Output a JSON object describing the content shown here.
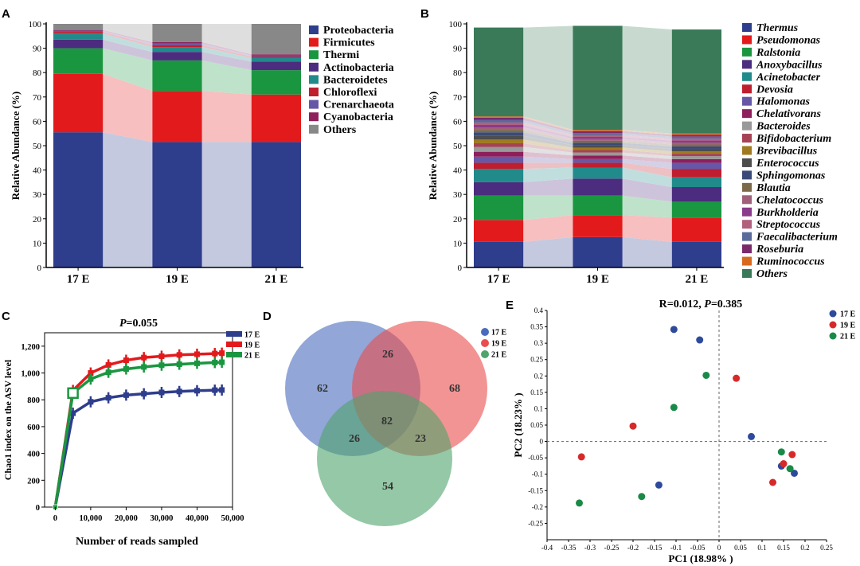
{
  "panels": {
    "A": "A",
    "B": "B",
    "C": "C",
    "D": "D",
    "E": "E"
  },
  "chart_data": [
    {
      "id": "A",
      "type": "bar",
      "stacked": true,
      "ylabel": "Relative Abundance (%)",
      "ylim": [
        0,
        100
      ],
      "yticks": [
        0,
        10,
        20,
        30,
        40,
        50,
        60,
        70,
        80,
        90,
        100
      ],
      "categories": [
        "17 E",
        "19 E",
        "21 E"
      ],
      "series": [
        {
          "name": "Proteobacteria",
          "color": "#2e3d8c",
          "values": [
            55.5,
            51.5,
            51.5
          ]
        },
        {
          "name": "Firmicutes",
          "color": "#e31a1c",
          "values": [
            24.0,
            21.0,
            19.5
          ]
        },
        {
          "name": "Thermi",
          "color": "#1a9640",
          "values": [
            10.5,
            12.5,
            10.0
          ]
        },
        {
          "name": "Actinobacteria",
          "color": "#4b2c7e",
          "values": [
            3.5,
            3.5,
            3.5
          ]
        },
        {
          "name": "Bacteroidetes",
          "color": "#218a8a",
          "values": [
            2.5,
            2.0,
            1.5
          ]
        },
        {
          "name": "Chloroflexi",
          "color": "#bf1e2e",
          "values": [
            0.7,
            0.8,
            0.6
          ]
        },
        {
          "name": "Crenarchaeota",
          "color": "#6658a6",
          "values": [
            0.5,
            0.6,
            0.5
          ]
        },
        {
          "name": "Cyanobacteria",
          "color": "#8e1f5c",
          "values": [
            0.3,
            0.6,
            0.4
          ]
        },
        {
          "name": "Others",
          "color": "#888888",
          "values": [
            2.5,
            7.5,
            12.5
          ]
        }
      ]
    },
    {
      "id": "B",
      "type": "bar",
      "stacked": true,
      "ylabel": "Relative Abundance (%)",
      "ylim": [
        0,
        100
      ],
      "yticks": [
        0,
        10,
        20,
        30,
        40,
        50,
        60,
        70,
        80,
        90,
        100
      ],
      "categories": [
        "17 E",
        "19 E",
        "21 E"
      ],
      "series": [
        {
          "name": "Thermus",
          "color": "#2e3d8c",
          "values": [
            10.5,
            12.5,
            10.5
          ]
        },
        {
          "name": "Pseudomonas",
          "color": "#e31a1c",
          "values": [
            9.0,
            9.0,
            10.0
          ]
        },
        {
          "name": "Ralstonia",
          "color": "#1a9640",
          "values": [
            10.0,
            8.0,
            6.5
          ]
        },
        {
          "name": "Anoxybacillus",
          "color": "#4b2c7e",
          "values": [
            5.5,
            7.0,
            6.0
          ]
        },
        {
          "name": "Acinetobacter",
          "color": "#218a8a",
          "values": [
            5.5,
            4.5,
            4.0
          ]
        },
        {
          "name": "Devosia",
          "color": "#bf1e2e",
          "values": [
            2.5,
            2.0,
            3.5
          ]
        },
        {
          "name": "Halomonas",
          "color": "#6658a6",
          "values": [
            2.5,
            1.5,
            2.5
          ]
        },
        {
          "name": "Chelativorans",
          "color": "#8e1f5c",
          "values": [
            2.0,
            1.5,
            1.5
          ]
        },
        {
          "name": "Bacteroides",
          "color": "#999999",
          "values": [
            2.0,
            1.2,
            1.2
          ]
        },
        {
          "name": "Bifidobacterium",
          "color": "#a64254",
          "values": [
            1.5,
            1.0,
            1.0
          ]
        },
        {
          "name": "Brevibacillus",
          "color": "#a07a1f",
          "values": [
            1.5,
            1.0,
            1.0
          ]
        },
        {
          "name": "Enterococcus",
          "color": "#4d4d4d",
          "values": [
            1.5,
            1.0,
            1.0
          ]
        },
        {
          "name": "Sphingomonas",
          "color": "#3a4a78",
          "values": [
            1.5,
            1.0,
            1.0
          ]
        },
        {
          "name": "Blautia",
          "color": "#7a6a4a",
          "values": [
            1.0,
            0.8,
            0.8
          ]
        },
        {
          "name": "Chelatococcus",
          "color": "#a0607a",
          "values": [
            1.0,
            0.8,
            0.8
          ]
        },
        {
          "name": "Burkholderia",
          "color": "#8a3a8a",
          "values": [
            1.0,
            0.8,
            0.8
          ]
        },
        {
          "name": "Streptococcus",
          "color": "#b0607e",
          "values": [
            1.0,
            0.8,
            0.8
          ]
        },
        {
          "name": "Faecalibacterium",
          "color": "#5a6a9a",
          "values": [
            1.0,
            0.8,
            0.8
          ]
        },
        {
          "name": "Roseburia",
          "color": "#7a2a6a",
          "values": [
            1.0,
            0.8,
            0.8
          ]
        },
        {
          "name": "Ruminococcus",
          "color": "#d86a1e",
          "values": [
            0.5,
            0.5,
            0.5
          ]
        },
        {
          "name": "Others",
          "color": "#3a7a58",
          "values": [
            36.5,
            42.7,
            42.7
          ]
        }
      ]
    },
    {
      "id": "C",
      "type": "line",
      "title_italic": "P",
      "title_rest": "=0.055",
      "xlabel": "Number of reads sampled",
      "ylabel": "Chao1 index on the ASV level",
      "xlim": [
        -3000,
        50000
      ],
      "ylim": [
        0,
        1300
      ],
      "xticks": [
        0,
        10000,
        20000,
        30000,
        40000,
        50000
      ],
      "xtick_labels": [
        "0",
        "10,000",
        "20,000",
        "30,000",
        "40,000",
        "50,000"
      ],
      "yticks": [
        0,
        200,
        400,
        600,
        800,
        1000,
        1200
      ],
      "ytick_labels": [
        "0",
        "200",
        "400",
        "600",
        "800",
        "1,000",
        "1,200"
      ],
      "x": [
        0,
        5000,
        10000,
        15000,
        20000,
        25000,
        30000,
        35000,
        40000,
        45000,
        47000
      ],
      "series": [
        {
          "name": "17 E",
          "color": "#2e3d8c",
          "values": [
            0,
            700,
            785,
            815,
            835,
            845,
            855,
            862,
            868,
            872,
            873
          ]
        },
        {
          "name": "19 E",
          "color": "#e31a1c",
          "values": [
            0,
            870,
            1000,
            1060,
            1095,
            1115,
            1125,
            1135,
            1140,
            1145,
            1148
          ]
        },
        {
          "name": "21 E",
          "color": "#1a9640",
          "values": [
            0,
            850,
            955,
            1005,
            1030,
            1045,
            1058,
            1065,
            1072,
            1078,
            1080
          ]
        }
      ]
    },
    {
      "id": "D",
      "type": "venn",
      "sets": [
        {
          "name": "17 E",
          "color": "#4a6bbd"
        },
        {
          "name": "19 E",
          "color": "#ea4d4d"
        },
        {
          "name": "21 E",
          "color": "#4fa46a"
        }
      ],
      "regions": {
        "only_17": "62",
        "only_19": "68",
        "only_21": "54",
        "17_19": "26",
        "17_21": "26",
        "19_21": "23",
        "all": "82"
      }
    },
    {
      "id": "E",
      "type": "scatter",
      "title_pre": "R=0.012, ",
      "title_italic": "P",
      "title_rest": "=0.385",
      "xlabel": "PC1 (18.98% )",
      "ylabel": "PC2 (18.23% )",
      "xlim": [
        -0.4,
        0.25
      ],
      "ylim": [
        -0.3,
        0.4
      ],
      "xticks": [
        -0.4,
        -0.35,
        -0.3,
        -0.25,
        -0.2,
        -0.15,
        -0.1,
        -0.05,
        0,
        0.05,
        0.1,
        0.15,
        0.2,
        0.25
      ],
      "xtick_labels": [
        "-0.4",
        "-0.35",
        "-0.3",
        "-0.25",
        "-0.2",
        "-0.15",
        "-0.1",
        "-0.05",
        "0",
        "0.05",
        "0.1",
        "0.15",
        "0.2",
        "0.25"
      ],
      "yticks": [
        -0.25,
        -0.2,
        -0.15,
        -0.1,
        -0.05,
        0,
        0.05,
        0.1,
        0.15,
        0.2,
        0.25,
        0.3,
        0.35,
        0.4
      ],
      "ytick_labels": [
        "-0.25",
        "-0.2",
        "-0.15",
        "-0.1",
        "-0.05",
        "0",
        "0.05",
        "0.1",
        "0.15",
        "0.2",
        "0.25",
        "0.3",
        "0.35",
        "0.4"
      ],
      "series": [
        {
          "name": "17 E",
          "color": "#2e4a9a",
          "points": [
            [
              -0.105,
              0.342
            ],
            [
              -0.045,
              0.31
            ],
            [
              0.075,
              0.015
            ],
            [
              -0.14,
              -0.133
            ],
            [
              0.145,
              -0.075
            ],
            [
              0.175,
              -0.097
            ]
          ]
        },
        {
          "name": "19 E",
          "color": "#d62a2a",
          "points": [
            [
              0.04,
              0.193
            ],
            [
              -0.2,
              0.047
            ],
            [
              -0.32,
              -0.047
            ],
            [
              0.15,
              -0.068
            ],
            [
              0.17,
              -0.04
            ],
            [
              0.125,
              -0.125
            ]
          ]
        },
        {
          "name": "21 E",
          "color": "#1a8a48",
          "points": [
            [
              -0.03,
              0.202
            ],
            [
              -0.105,
              0.104
            ],
            [
              -0.325,
              -0.188
            ],
            [
              -0.18,
              -0.168
            ],
            [
              0.145,
              -0.032
            ],
            [
              0.165,
              -0.083
            ]
          ]
        }
      ]
    }
  ]
}
